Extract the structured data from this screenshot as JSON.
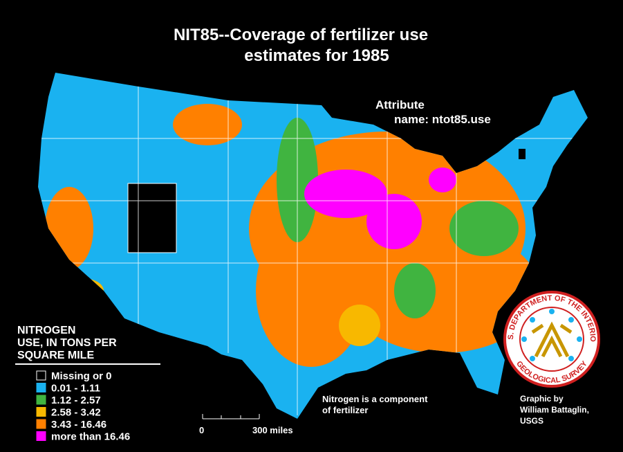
{
  "title": {
    "line1": "NIT85--Coverage  of  fertilizer  use",
    "line2": "estimates  for  1985"
  },
  "attribute": {
    "line1": "Attribute",
    "line2": "name:  ntot85.use"
  },
  "legend": {
    "title": [
      "NITROGEN",
      "USE, IN TONS PER",
      "SQUARE MILE"
    ],
    "items": [
      {
        "label": "Missing or 0",
        "color": "#000000"
      },
      {
        "label": "0.01  -  1.11",
        "color": "#1ab2f0"
      },
      {
        "label": "1.12  -  2.57",
        "color": "#40b440"
      },
      {
        "label": "2.58  -  3.42",
        "color": "#f8b800"
      },
      {
        "label": "3.43  -  16.46",
        "color": "#ff8000"
      },
      {
        "label": "more than 16.46",
        "color": "#ff00ff"
      }
    ]
  },
  "scale": {
    "start": "0",
    "end": "300  miles"
  },
  "note": {
    "line1": "Nitrogen  is  a  component",
    "line2": "of  fertilizer"
  },
  "credit": {
    "line1": "Graphic  by",
    "line2": "William  Battaglin,",
    "line3": "USGS"
  },
  "seal": {
    "top": "U.S. DEPARTMENT OF THE INTERIOR",
    "bottom": "GEOLOGICAL SURVEY"
  }
}
